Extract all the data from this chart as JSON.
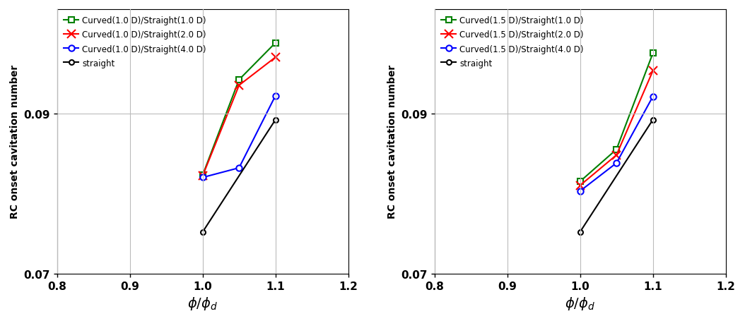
{
  "left": {
    "series": [
      {
        "label": "Curved(1.0 D)/Straight(1.0 D)",
        "color": "green",
        "marker": "s",
        "markersize": 6,
        "markerfacecolor": "white",
        "markeredgecolor": "green",
        "x": [
          1.0,
          1.05,
          1.1
        ],
        "y": [
          0.0823,
          0.0942,
          0.0988
        ]
      },
      {
        "label": "Curved(1.0 D)/Straight(2.0 D)",
        "color": "red",
        "marker": "x",
        "markersize": 8,
        "markerfacecolor": "red",
        "markeredgecolor": "red",
        "x": [
          1.0,
          1.05,
          1.1
        ],
        "y": [
          0.0822,
          0.0935,
          0.097
        ]
      },
      {
        "label": "Curved(1.0 D)/Straight(4.0 D)",
        "color": "blue",
        "marker": "o",
        "markersize": 6,
        "markerfacecolor": "white",
        "markeredgecolor": "blue",
        "x": [
          1.0,
          1.05,
          1.1
        ],
        "y": [
          0.082,
          0.0832,
          0.0922
        ]
      },
      {
        "label": "straight",
        "color": "black",
        "marker": "o",
        "markersize": 5,
        "markerfacecolor": "white",
        "markeredgecolor": "black",
        "x": [
          1.0,
          1.1
        ],
        "y": [
          0.0752,
          0.0892
        ]
      }
    ],
    "xlabel": "$\\phi/\\phi_d$",
    "ylabel": "RC onset cavitation number",
    "xlim": [
      0.8,
      1.2
    ],
    "ylim": [
      0.07,
      0.103
    ],
    "yticks": [
      0.07,
      0.09
    ],
    "xticks": [
      0.8,
      0.9,
      1.0,
      1.1,
      1.2
    ]
  },
  "right": {
    "series": [
      {
        "label": "Curved(1.5 D)/Straight(1.0 D)",
        "color": "green",
        "marker": "s",
        "markersize": 6,
        "markerfacecolor": "white",
        "markeredgecolor": "green",
        "x": [
          1.0,
          1.05,
          1.1
        ],
        "y": [
          0.0815,
          0.0855,
          0.0975
        ]
      },
      {
        "label": "Curved(1.5 D)/Straight(2.0 D)",
        "color": "red",
        "marker": "x",
        "markersize": 8,
        "markerfacecolor": "red",
        "markeredgecolor": "red",
        "x": [
          1.0,
          1.05,
          1.1
        ],
        "y": [
          0.081,
          0.0848,
          0.0953
        ]
      },
      {
        "label": "Curved(1.5 D)/Straight(4.0 D)",
        "color": "blue",
        "marker": "o",
        "markersize": 6,
        "markerfacecolor": "white",
        "markeredgecolor": "blue",
        "x": [
          1.0,
          1.05,
          1.1
        ],
        "y": [
          0.0803,
          0.0838,
          0.0921
        ]
      },
      {
        "label": "straight",
        "color": "black",
        "marker": "o",
        "markersize": 5,
        "markerfacecolor": "white",
        "markeredgecolor": "black",
        "x": [
          1.0,
          1.1
        ],
        "y": [
          0.0752,
          0.0892
        ]
      }
    ],
    "xlabel": "$\\phi/\\phi_d$",
    "ylabel": "RC onset cavitation number",
    "xlim": [
      0.8,
      1.2
    ],
    "ylim": [
      0.07,
      0.103
    ],
    "yticks": [
      0.07,
      0.09
    ],
    "xticks": [
      0.8,
      0.9,
      1.0,
      1.1,
      1.2
    ]
  },
  "background_color": "#ffffff",
  "grid_color": "#bbbbbb",
  "fig_width": 10.54,
  "fig_height": 4.56,
  "dpi": 100
}
